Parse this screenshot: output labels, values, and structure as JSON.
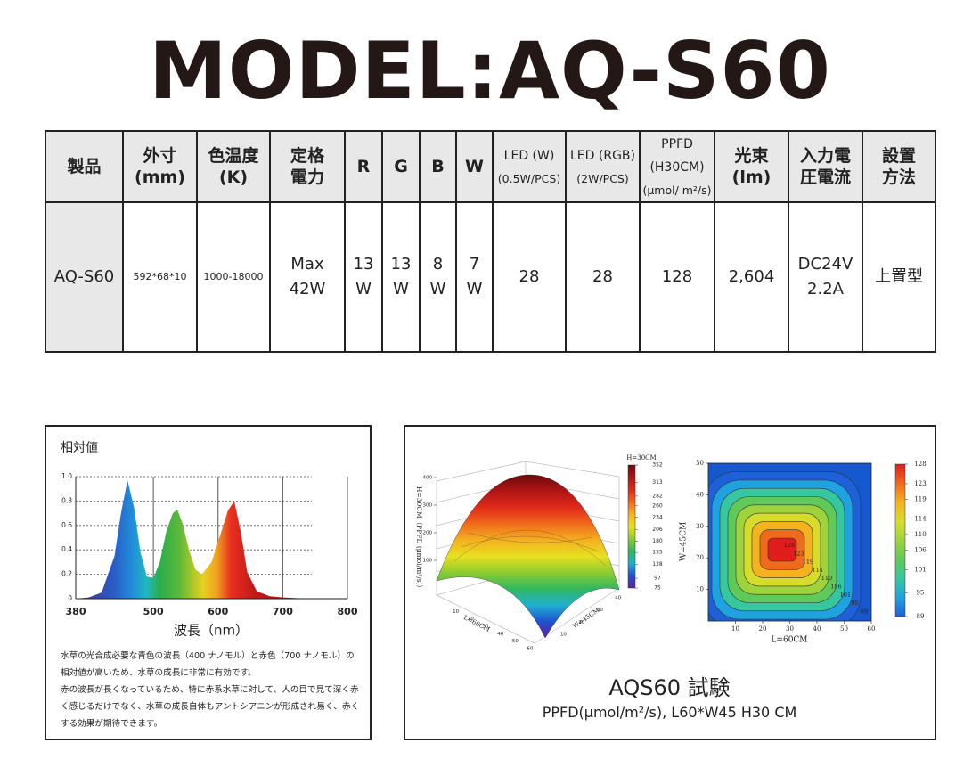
{
  "title": "MODEL:AQ-S60",
  "table": {
    "header": [
      [
        "製品"
      ],
      [
        "外寸",
        "(mm)"
      ],
      [
        "色温度",
        "(K)"
      ],
      [
        "定格",
        "電力"
      ],
      [
        "R"
      ],
      [
        "G"
      ],
      [
        "B"
      ],
      [
        "W"
      ],
      [
        "LED (W)",
        "(0.5W/PCS)"
      ],
      [
        "LED (RGB)",
        "(2W/PCS)"
      ],
      [
        "PPFD (H30CM)",
        "(μmol/ m²/s)"
      ],
      [
        "光束",
        "(lm)"
      ],
      [
        "入力電",
        "圧電流"
      ],
      [
        "設置",
        "方法"
      ]
    ],
    "rows": [
      [
        [
          "AQ-S60"
        ],
        [
          "592*68*10"
        ],
        [
          "1000-18000"
        ],
        [
          "Max",
          "42W"
        ],
        [
          "13",
          "W"
        ],
        [
          "13",
          "W"
        ],
        [
          "8",
          "W"
        ],
        [
          "7",
          "W"
        ],
        [
          "28"
        ],
        [
          "28"
        ],
        [
          "128"
        ],
        [
          "2,604"
        ],
        [
          "DC24V",
          "2.2A"
        ],
        [
          "上置型"
        ]
      ]
    ]
  },
  "description": [
    "水草の光合成必要な青色の波長（400 ナノモル）と赤色（700 ナノモル）の相対値が高いため、水草の成長に非常に有効です。",
    "赤の波長が長くなっているため、特に赤系水草に対して、人の目で見て深く赤く感じるだけでなく、水草の成長自体もアントシアニンが形成され易く、赤くする効果が期待できます。"
  ],
  "chart_data": [
    {
      "type": "area",
      "y_label": "相対値",
      "x_label": "波長（nm）",
      "x": [
        380,
        400,
        420,
        440,
        450,
        460,
        470,
        480,
        490,
        500,
        510,
        520,
        530,
        537,
        545,
        555,
        565,
        575,
        590,
        605,
        615,
        625,
        635,
        645,
        660,
        680,
        700,
        740,
        780
      ],
      "values": [
        0,
        0.01,
        0.05,
        0.35,
        0.7,
        0.97,
        0.75,
        0.38,
        0.18,
        0.17,
        0.3,
        0.55,
        0.7,
        0.73,
        0.62,
        0.4,
        0.24,
        0.2,
        0.3,
        0.55,
        0.72,
        0.8,
        0.55,
        0.22,
        0.06,
        0.02,
        0.01,
        0,
        0
      ],
      "xlim": [
        380,
        800
      ],
      "ylim": [
        0,
        1
      ],
      "xticks": [
        380,
        500,
        600,
        700,
        800
      ],
      "yticks": [
        0,
        0.2,
        0.4,
        0.6,
        0.8,
        {
          "value": 1,
          "label": "1.0"
        }
      ]
    },
    {
      "type": "surface3d",
      "z_label": "H=30CM（PPFD (μmol/m²/s)）",
      "x_label": "L=60CM",
      "y_label": "W=45CM",
      "colorbar_title": "H=30CM",
      "colorbar_ticks": [
        352,
        313,
        282,
        260,
        234,
        206,
        180,
        155,
        128,
        97,
        75
      ],
      "colors": [
        "#6b0a0a",
        "#b01515",
        "#e02a1a",
        "#f06a1c",
        "#f5b020",
        "#e8e020",
        "#8ccc30",
        "#30b860",
        "#20b0d0",
        "#2050d0",
        "#6020a0"
      ],
      "zticks": [
        100,
        200,
        300,
        400
      ],
      "xticks": [
        10,
        20,
        30,
        40,
        50,
        60
      ],
      "yticks": [
        10,
        20,
        30,
        40
      ]
    },
    {
      "type": "contour",
      "x_label": "L=60CM",
      "y_label": "W=45CM",
      "xlim": [
        0,
        60
      ],
      "ylim": [
        0,
        50
      ],
      "xticks": [
        10,
        20,
        30,
        40,
        50,
        60
      ],
      "yticks": [
        10,
        20,
        30,
        40,
        50
      ],
      "levels": [
        128,
        123,
        119,
        114,
        110,
        106,
        101,
        95,
        89
      ],
      "colors": [
        "#e01d1a",
        "#f06a1c",
        "#f4b21f",
        "#d7dc2a",
        "#9ed33c",
        "#5fc95a",
        "#36c7a0",
        "#1fa3e0",
        "#1e60d8"
      ],
      "colorbar_ticks": [
        128,
        123,
        119,
        114,
        110,
        106,
        101,
        95,
        89
      ]
    }
  ],
  "caption": {
    "title": "AQS60 試験",
    "subtitle": "PPFD(μmol/m²/s), L60*W45 H30 CM"
  }
}
